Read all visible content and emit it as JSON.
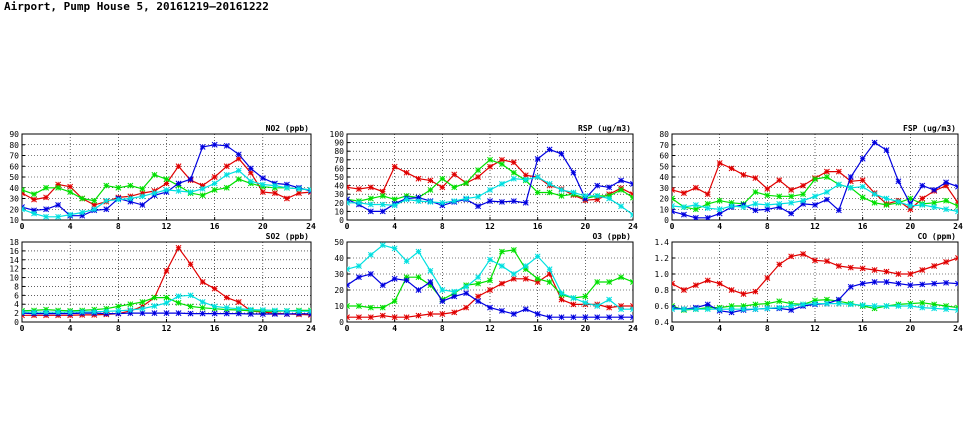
{
  "page": {
    "title": "Airport, Pump House 5, 20161219—20161222"
  },
  "colors": {
    "red": "#e00000",
    "green": "#00e000",
    "blue": "#0000e0",
    "cyan": "#00e0e0"
  },
  "chart_data": [
    {
      "type": "line",
      "title": "NO2 (ppb)",
      "xlim": [
        0,
        24
      ],
      "ylim": [
        10,
        90
      ],
      "xticks": [
        0,
        4,
        8,
        12,
        16,
        20,
        24
      ],
      "yticks": [
        10,
        20,
        30,
        40,
        50,
        60,
        70,
        80,
        90
      ],
      "ytick_labels": [
        "10",
        "20",
        "30",
        "40",
        "50",
        "60",
        "70",
        "80",
        "90"
      ],
      "grid": true,
      "x": [
        0,
        1,
        2,
        3,
        4,
        5,
        6,
        7,
        8,
        9,
        10,
        11,
        12,
        13,
        14,
        15,
        16,
        17,
        18,
        19,
        20,
        21,
        22,
        23,
        24
      ],
      "series": [
        {
          "color": "red",
          "values": [
            35,
            29,
            31,
            43,
            41,
            30,
            24,
            27,
            31,
            32,
            35,
            37,
            44,
            60,
            47,
            42,
            50,
            60,
            67,
            54,
            36,
            35,
            30,
            35,
            36
          ]
        },
        {
          "color": "green",
          "values": [
            38,
            34,
            40,
            40,
            36,
            30,
            28,
            42,
            40,
            42,
            39,
            52,
            48,
            42,
            35,
            33,
            38,
            40,
            48,
            44,
            41,
            40,
            40,
            39,
            38
          ]
        },
        {
          "color": "blue",
          "values": [
            22,
            19,
            20,
            24,
            14,
            14,
            19,
            20,
            30,
            27,
            24,
            33,
            36,
            44,
            48,
            78,
            80,
            79,
            71,
            58,
            49,
            44,
            43,
            40,
            37
          ]
        },
        {
          "color": "cyan",
          "values": [
            20,
            16,
            13,
            13,
            15,
            17,
            20,
            28,
            29,
            30,
            32,
            35,
            38,
            37,
            36,
            39,
            44,
            52,
            56,
            46,
            43,
            42,
            40,
            39,
            38
          ]
        }
      ]
    },
    {
      "type": "line",
      "title": "RSP (ug/m3)",
      "xlim": [
        0,
        24
      ],
      "ylim": [
        0,
        100
      ],
      "xticks": [
        0,
        4,
        8,
        12,
        16,
        20,
        24
      ],
      "yticks": [
        0,
        10,
        20,
        30,
        40,
        50,
        60,
        70,
        80,
        90,
        100
      ],
      "ytick_labels": [
        "0",
        "10",
        "20",
        "30",
        "40",
        "50",
        "60",
        "70",
        "80",
        "90",
        "100"
      ],
      "grid": true,
      "x": [
        0,
        1,
        2,
        3,
        4,
        5,
        6,
        7,
        8,
        9,
        10,
        11,
        12,
        13,
        14,
        15,
        16,
        17,
        18,
        19,
        20,
        21,
        22,
        23,
        24
      ],
      "series": [
        {
          "color": "red",
          "values": [
            38,
            36,
            38,
            33,
            62,
            55,
            48,
            46,
            38,
            53,
            43,
            50,
            62,
            70,
            67,
            52,
            50,
            40,
            36,
            29,
            23,
            24,
            30,
            37,
            30
          ]
        },
        {
          "color": "green",
          "values": [
            24,
            22,
            25,
            28,
            24,
            28,
            26,
            35,
            48,
            38,
            43,
            58,
            70,
            65,
            55,
            46,
            32,
            32,
            28,
            30,
            25,
            28,
            28,
            35,
            26
          ]
        },
        {
          "color": "blue",
          "values": [
            24,
            18,
            10,
            10,
            19,
            25,
            26,
            22,
            17,
            21,
            24,
            16,
            22,
            21,
            22,
            20,
            71,
            82,
            77,
            55,
            25,
            40,
            38,
            46,
            42
          ]
        },
        {
          "color": "cyan",
          "values": [
            20,
            20,
            18,
            18,
            17,
            24,
            22,
            21,
            20,
            22,
            25,
            27,
            35,
            42,
            48,
            47,
            50,
            42,
            35,
            32,
            28,
            28,
            25,
            16,
            6
          ]
        }
      ]
    },
    {
      "type": "line",
      "title": "FSP (ug/m3)",
      "xlim": [
        0,
        24
      ],
      "ylim": [
        0,
        80
      ],
      "xticks": [
        0,
        4,
        8,
        12,
        16,
        20,
        24
      ],
      "yticks": [
        0,
        10,
        20,
        30,
        40,
        50,
        60,
        70,
        80
      ],
      "ytick_labels": [
        "0",
        "10",
        "20",
        "30",
        "40",
        "50",
        "60",
        "70",
        "80"
      ],
      "grid": true,
      "x": [
        0,
        1,
        2,
        3,
        4,
        5,
        6,
        7,
        8,
        9,
        10,
        11,
        12,
        13,
        14,
        15,
        16,
        17,
        18,
        19,
        20,
        21,
        22,
        23,
        24
      ],
      "series": [
        {
          "color": "red",
          "values": [
            28,
            25,
            30,
            24,
            53,
            48,
            42,
            39,
            29,
            37,
            28,
            32,
            39,
            45,
            45,
            36,
            37,
            25,
            15,
            18,
            10,
            20,
            27,
            32,
            16
          ]
        },
        {
          "color": "green",
          "values": [
            20,
            12,
            10,
            15,
            18,
            16,
            15,
            26,
            23,
            22,
            22,
            24,
            38,
            40,
            33,
            30,
            21,
            16,
            14,
            16,
            20,
            15,
            16,
            18,
            13
          ]
        },
        {
          "color": "blue",
          "values": [
            8,
            5,
            2,
            2,
            6,
            12,
            14,
            9,
            10,
            12,
            6,
            15,
            14,
            19,
            9,
            40,
            57,
            72,
            65,
            36,
            15,
            32,
            28,
            35,
            31
          ]
        },
        {
          "color": "cyan",
          "values": [
            13,
            12,
            14,
            11,
            10,
            13,
            12,
            15,
            14,
            15,
            16,
            18,
            22,
            26,
            33,
            30,
            31,
            24,
            20,
            17,
            13,
            14,
            12,
            10,
            8
          ]
        }
      ]
    },
    {
      "type": "line",
      "title": "SO2 (ppb)",
      "xlim": [
        0,
        24
      ],
      "ylim": [
        0,
        18
      ],
      "xticks": [
        0,
        4,
        8,
        12,
        16,
        20,
        24
      ],
      "yticks": [
        0,
        2,
        4,
        6,
        8,
        10,
        12,
        14,
        16,
        18
      ],
      "ytick_labels": [
        "0",
        "2",
        "4",
        "6",
        "8",
        "10",
        "12",
        "14",
        "16",
        "18"
      ],
      "grid": true,
      "x": [
        0,
        1,
        2,
        3,
        4,
        5,
        6,
        7,
        8,
        9,
        10,
        11,
        12,
        13,
        14,
        15,
        16,
        17,
        18,
        19,
        20,
        21,
        22,
        23,
        24
      ],
      "series": [
        {
          "color": "red",
          "values": [
            1.5,
            1.5,
            1.5,
            1.5,
            1.5,
            1.6,
            1.6,
            1.7,
            1.9,
            2.5,
            3.5,
            5.5,
            11.5,
            16.7,
            13,
            9,
            7.5,
            5.5,
            4.5,
            2.5,
            2.2,
            2,
            1.8,
            1.7,
            1.6
          ]
        },
        {
          "color": "green",
          "values": [
            2.5,
            2.6,
            2.8,
            2.6,
            2.5,
            2.6,
            2.8,
            3.0,
            3.5,
            4.0,
            4.5,
            5.5,
            5.5,
            4.3,
            3.5,
            3.2,
            3.0,
            2.8,
            2.7,
            2.5,
            2.4,
            2.4,
            2.5,
            2.6,
            2.6
          ]
        },
        {
          "color": "blue",
          "values": [
            2.0,
            1.9,
            1.9,
            1.9,
            1.9,
            2.0,
            2.0,
            1.9,
            1.9,
            2.0,
            2.0,
            2.0,
            2.0,
            2.0,
            1.9,
            1.9,
            1.9,
            1.9,
            1.9,
            1.8,
            1.8,
            1.8,
            1.8,
            1.9,
            1.8
          ]
        },
        {
          "color": "cyan",
          "values": [
            2.2,
            2.2,
            2.2,
            2.2,
            2.2,
            2.3,
            2.3,
            2.4,
            2.5,
            2.7,
            3.0,
            3.6,
            4.3,
            5.8,
            6.0,
            4.5,
            3.5,
            3.2,
            3.0,
            2.8,
            2.7,
            2.6,
            2.5,
            2.4,
            2.4
          ]
        }
      ]
    },
    {
      "type": "line",
      "title": "O3 (ppb)",
      "xlim": [
        0,
        24
      ],
      "ylim": [
        0,
        50
      ],
      "xticks": [
        0,
        4,
        8,
        12,
        16,
        20,
        24
      ],
      "yticks": [
        0,
        10,
        20,
        30,
        40,
        50
      ],
      "ytick_labels": [
        "0",
        "10",
        "20",
        "30",
        "40",
        "50"
      ],
      "grid": true,
      "x": [
        0,
        1,
        2,
        3,
        4,
        5,
        6,
        7,
        8,
        9,
        10,
        11,
        12,
        13,
        14,
        15,
        16,
        17,
        18,
        19,
        20,
        21,
        22,
        23,
        24
      ],
      "series": [
        {
          "color": "red",
          "values": [
            3,
            3,
            3,
            4,
            3,
            3,
            4,
            5,
            5,
            6,
            9,
            16,
            20,
            24,
            27,
            27,
            25,
            30,
            14,
            11,
            11,
            11,
            9,
            10,
            10
          ]
        },
        {
          "color": "green",
          "values": [
            10,
            10,
            9,
            9,
            13,
            28,
            28,
            23,
            14,
            18,
            23,
            24,
            26,
            44,
            45,
            33,
            27,
            25,
            17,
            15,
            16,
            25,
            25,
            28,
            25
          ]
        },
        {
          "color": "blue",
          "values": [
            23,
            28,
            30,
            23,
            27,
            26,
            20,
            25,
            13,
            16,
            18,
            13,
            9,
            7,
            5,
            8,
            5,
            3,
            3,
            3,
            3,
            3,
            3,
            3,
            3
          ]
        },
        {
          "color": "cyan",
          "values": [
            33,
            35,
            42,
            48,
            46,
            38,
            44,
            32,
            20,
            19,
            22,
            28,
            39,
            35,
            30,
            35,
            41,
            33,
            18,
            15,
            12,
            10,
            14,
            8,
            8
          ]
        }
      ]
    },
    {
      "type": "line",
      "title": "CO (ppm)",
      "xlim": [
        0,
        24
      ],
      "ylim": [
        0.4,
        1.4
      ],
      "xticks": [
        0,
        4,
        8,
        12,
        16,
        20,
        24
      ],
      "yticks": [
        0.4,
        0.6,
        0.8,
        1.0,
        1.2,
        1.4
      ],
      "ytick_labels": [
        "0.4",
        "0.6",
        "0.8",
        "1.0",
        "1.2",
        "1.4"
      ],
      "grid": true,
      "x": [
        0,
        1,
        2,
        3,
        4,
        5,
        6,
        7,
        8,
        9,
        10,
        11,
        12,
        13,
        14,
        15,
        16,
        17,
        18,
        19,
        20,
        21,
        22,
        23,
        24
      ],
      "series": [
        {
          "color": "red",
          "values": [
            0.88,
            0.8,
            0.86,
            0.92,
            0.88,
            0.8,
            0.75,
            0.78,
            0.95,
            1.12,
            1.22,
            1.25,
            1.17,
            1.16,
            1.1,
            1.08,
            1.07,
            1.05,
            1.03,
            1.0,
            1.0,
            1.05,
            1.1,
            1.15,
            1.2
          ]
        },
        {
          "color": "green",
          "values": [
            0.6,
            0.55,
            0.56,
            0.58,
            0.58,
            0.6,
            0.6,
            0.62,
            0.63,
            0.66,
            0.63,
            0.62,
            0.67,
            0.68,
            0.66,
            0.63,
            0.6,
            0.57,
            0.6,
            0.62,
            0.63,
            0.64,
            0.62,
            0.6,
            0.58
          ]
        },
        {
          "color": "blue",
          "values": [
            0.58,
            0.56,
            0.58,
            0.62,
            0.54,
            0.52,
            0.55,
            0.56,
            0.57,
            0.57,
            0.55,
            0.6,
            0.62,
            0.63,
            0.68,
            0.84,
            0.88,
            0.9,
            0.9,
            0.88,
            0.86,
            0.87,
            0.88,
            0.89,
            0.88
          ]
        },
        {
          "color": "cyan",
          "values": [
            0.56,
            0.56,
            0.56,
            0.56,
            0.56,
            0.56,
            0.56,
            0.56,
            0.57,
            0.58,
            0.6,
            0.62,
            0.63,
            0.63,
            0.63,
            0.62,
            0.61,
            0.6,
            0.6,
            0.6,
            0.6,
            0.58,
            0.57,
            0.56,
            0.55
          ]
        }
      ]
    }
  ]
}
